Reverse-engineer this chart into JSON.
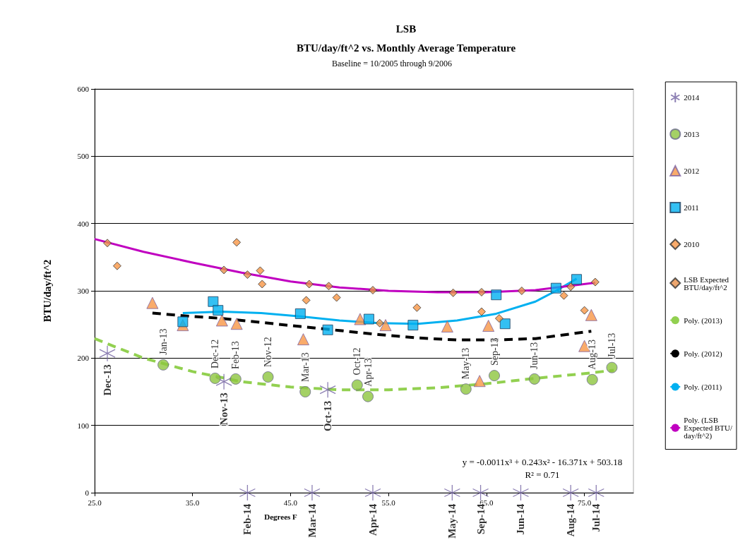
{
  "chart_data": {
    "type": "scatter",
    "title": "LSB",
    "subtitle": "BTU/day/ft^2 vs. Monthly Average Temperature",
    "xlabel": "Degrees F",
    "ylabel": "BTU/day/ft^2",
    "annotations": [
      "Baseline = 10/2005 through 9/2006",
      "y = -0.0011x³ + 0.243x² - 16.371x + 503.18",
      "R² = 0.71"
    ],
    "xlim": [
      25,
      80
    ],
    "xticks": [
      {
        "value": 25,
        "label": "25.0"
      },
      {
        "value": 35,
        "label": "35.0"
      },
      {
        "value": 45,
        "label": "45.0"
      },
      {
        "value": 55,
        "label": "55.0"
      },
      {
        "value": 65,
        "label": "65.0"
      },
      {
        "value": 75,
        "label": "75.0"
      }
    ],
    "ylim": [
      0,
      600
    ],
    "yticks": [
      0,
      100,
      200,
      300,
      400,
      500,
      600
    ],
    "grid": "y",
    "legend": "right",
    "series": [
      {
        "name": "2014",
        "type": "scatter",
        "marker": "cross",
        "color": "#7060a0",
        "x": [
          26.3,
          38.2,
          48.8,
          40.6,
          47.2,
          53.4,
          61.5,
          64.4,
          68.5,
          73.6,
          76.2
        ],
        "values": [
          207,
          165,
          153,
          0,
          0,
          0,
          0,
          0,
          0,
          0,
          0
        ],
        "value_labels": [
          "Dec-13",
          "Nov-13",
          "Oct-13",
          "Feb-14",
          "Mar-14",
          "Apr-14",
          "May-14",
          "Sep-14",
          "Jun-14",
          "Aug-14",
          "Jul-14"
        ]
      },
      {
        "name": "2013",
        "type": "scatter",
        "marker": "circle",
        "color": "#8dc63f",
        "x": [
          32.0,
          37.3,
          39.4,
          42.7,
          46.5,
          51.8,
          52.9,
          62.9,
          65.8,
          69.9,
          75.8,
          77.8
        ],
        "values": [
          190,
          170,
          169,
          172,
          150,
          160,
          143,
          154,
          174,
          169,
          168,
          186
        ],
        "value_labels": [
          "Jan-13",
          "Dec-12",
          "Feb-13",
          "Nov-12",
          "Mar-13",
          "Oct-12",
          "Apr-13",
          "May-13",
          "Sep-13",
          "Jun-13",
          "Aug-13",
          "Jul-13"
        ]
      },
      {
        "name": "2012",
        "type": "scatter",
        "marker": "triangle",
        "color": "#f79646",
        "x": [
          30.9,
          34.0,
          38.0,
          39.5,
          46.3,
          52.1,
          54.7,
          61.0,
          64.3,
          65.2,
          75.0,
          75.7
        ],
        "values": [
          282,
          249,
          256,
          251,
          228,
          258,
          249,
          247,
          166,
          248,
          218,
          264
        ]
      },
      {
        "name": "2011",
        "type": "scatter",
        "marker": "square",
        "color": "#00b0f0",
        "x": [
          34.0,
          37.1,
          37.6,
          46.0,
          48.8,
          53.0,
          57.5,
          66.0,
          66.9,
          72.1,
          74.2
        ],
        "values": [
          254,
          284,
          271,
          266,
          242,
          258,
          249,
          294,
          251,
          304,
          317
        ]
      },
      {
        "name": "2010",
        "type": "scatter",
        "marker": "diamond",
        "color": "#f79646",
        "x": [
          27.3,
          39.5,
          41.9,
          42.1,
          46.6,
          49.7,
          54.1,
          57.9,
          64.5,
          66.3,
          72.9,
          75.0
        ],
        "values": [
          337,
          372,
          330,
          310,
          286,
          290,
          252,
          275,
          269,
          259,
          293,
          271
        ]
      },
      {
        "name": "LSB Expected BTU/day/ft^2",
        "type": "scatter",
        "marker": "diamond",
        "color": "#e8904a",
        "x": [
          26.3,
          38.2,
          40.6,
          46.9,
          48.9,
          53.4,
          61.6,
          64.5,
          68.6,
          73.6,
          76.1
        ],
        "values": [
          371,
          331,
          324,
          310,
          307,
          301,
          297,
          298,
          300,
          306,
          313
        ]
      },
      {
        "name": "Poly. (2013)",
        "type": "line",
        "line_style": "dashed",
        "color": "#92d050",
        "x": [
          25,
          30,
          35,
          40,
          45,
          50,
          55,
          60,
          65,
          70,
          75,
          78
        ],
        "values": [
          229,
          200,
          180,
          165,
          157,
          153,
          153,
          156,
          162,
          170,
          177,
          182
        ]
      },
      {
        "name": "Poly. (2012)",
        "type": "line",
        "line_style": "dashed",
        "color": "#000000",
        "x": [
          30.9,
          34,
          38,
          42,
          46,
          50,
          54,
          58,
          62,
          66,
          70,
          75.7
        ],
        "values": [
          267,
          263,
          259,
          253,
          247,
          241,
          235,
          230,
          227,
          227,
          229,
          240
        ]
      },
      {
        "name": "Poly. (2011)",
        "type": "line",
        "line_style": "solid",
        "color": "#00b0f0",
        "x": [
          34,
          38,
          42,
          46,
          50,
          54,
          58,
          62,
          66,
          70,
          72.1,
          74.2
        ],
        "values": [
          267,
          269,
          267,
          262,
          256,
          252,
          251,
          256,
          266,
          284,
          300,
          318
        ]
      },
      {
        "name": "Poly. (LSB Expected BTU/day/ft^2)",
        "type": "line",
        "line_style": "solid",
        "color": "#c000c0",
        "x": [
          25,
          30,
          35,
          40,
          45,
          50,
          55,
          60,
          65,
          70,
          76.1
        ],
        "values": [
          377,
          358,
          342,
          327,
          314,
          305,
          300,
          298,
          298,
          301,
          312
        ]
      }
    ]
  }
}
